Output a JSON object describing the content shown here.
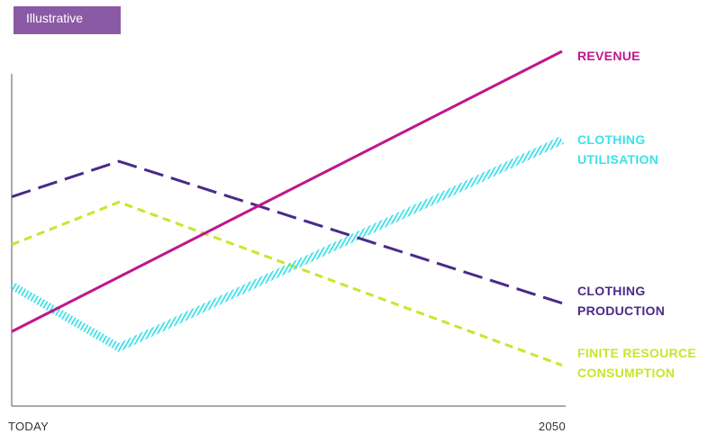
{
  "badge": {
    "text": "Illustrative",
    "bg": "#8b5aa5",
    "color": "#ffffff"
  },
  "chart_data": {
    "type": "line",
    "title": "",
    "xlabel": "",
    "ylabel": "",
    "x_tick_labels": [
      "TODAY",
      "2050"
    ],
    "x_domain": [
      0,
      100
    ],
    "ylim": [
      0,
      100
    ],
    "grid": false,
    "legend": "inline-right",
    "series": [
      {
        "key": "revenue",
        "label_lines": [
          "REVENUE"
        ],
        "color": "#c0168c",
        "style": "solid",
        "x": [
          0,
          100
        ],
        "y": [
          21.0,
          100.0
        ]
      },
      {
        "key": "clothing_utilisation",
        "label_lines": [
          "CLOTHING",
          "UTILISATION"
        ],
        "color": "#3ee0e8",
        "style": "hatched",
        "x": [
          0,
          19.5,
          100
        ],
        "y": [
          34.0,
          16.5,
          75.0
        ]
      },
      {
        "key": "clothing_production",
        "label_lines": [
          "CLOTHING",
          "PRODUCTION"
        ],
        "color": "#4a2a8a",
        "style": "dashed",
        "x": [
          0,
          19.5,
          100
        ],
        "y": [
          59.0,
          69.0,
          29.0
        ]
      },
      {
        "key": "finite_resource_consumption",
        "label_lines": [
          "FINITE RESOURCE",
          "CONSUMPTION"
        ],
        "color": "#c8e62a",
        "style": "dotted",
        "x": [
          0,
          19.5,
          100
        ],
        "y": [
          45.5,
          57.5,
          11.5
        ]
      }
    ]
  }
}
